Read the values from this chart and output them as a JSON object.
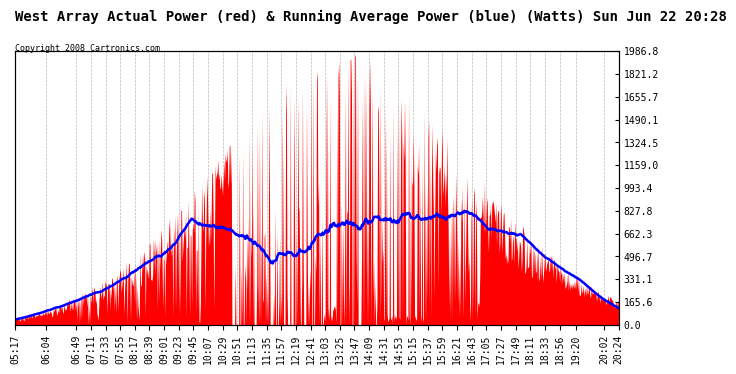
{
  "title": "West Array Actual Power (red) & Running Average Power (blue) (Watts) Sun Jun 22 20:28",
  "copyright": "Copyright 2008 Cartronics.com",
  "ylabel_values": [
    1986.8,
    1821.2,
    1655.7,
    1490.1,
    1324.5,
    1159.0,
    993.4,
    827.8,
    662.3,
    496.7,
    331.1,
    165.6,
    0.0
  ],
  "ymax": 1986.8,
  "ymin": 0.0,
  "background_color": "#ffffff",
  "plot_bg_color": "#ffffff",
  "grid_color": "#888888",
  "title_fontsize": 10,
  "tick_fontsize": 7,
  "time_labels": [
    "05:17",
    "06:04",
    "06:49",
    "07:11",
    "07:33",
    "07:55",
    "08:17",
    "08:39",
    "09:01",
    "09:23",
    "09:45",
    "10:07",
    "10:29",
    "10:51",
    "11:13",
    "11:35",
    "11:57",
    "12:19",
    "12:41",
    "13:03",
    "13:25",
    "13:47",
    "14:09",
    "14:31",
    "14:53",
    "15:15",
    "15:37",
    "15:59",
    "16:21",
    "16:43",
    "17:05",
    "17:27",
    "17:49",
    "18:11",
    "18:33",
    "18:56",
    "19:20",
    "20:02",
    "20:24"
  ]
}
